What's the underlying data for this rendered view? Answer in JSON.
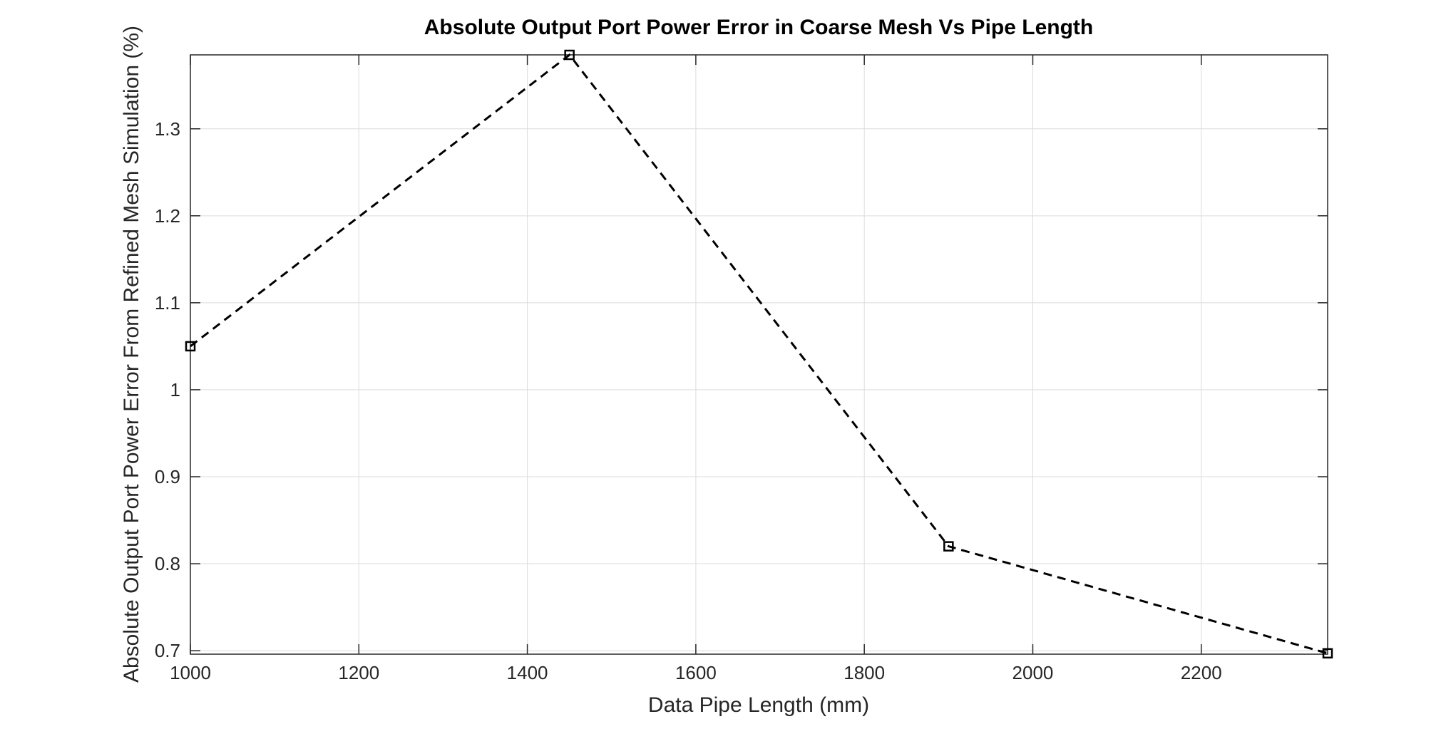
{
  "chart_data": {
    "type": "line",
    "title": "Absolute Output Port Power Error in Coarse Mesh Vs Pipe Length",
    "xlabel": "Data Pipe Length (mm)",
    "ylabel": "Absolute Output Port Power Error From Refined Mesh Simulation (%)",
    "xlim": [
      1000,
      2350
    ],
    "ylim": [
      0.696,
      1.385
    ],
    "xticks": [
      1000,
      1200,
      1400,
      1600,
      1800,
      2000,
      2200
    ],
    "yticks": [
      0.7,
      0.8,
      0.9,
      1.0,
      1.1,
      1.2,
      1.3
    ],
    "xtick_labels": [
      "1000",
      "1200",
      "1400",
      "1600",
      "1800",
      "2000",
      "2200"
    ],
    "ytick_labels": [
      "0.7",
      "0.8",
      "0.9",
      "1",
      "1.1",
      "1.2",
      "1.3"
    ],
    "grid": true,
    "series": [
      {
        "x": [
          1000,
          1450,
          1900,
          2350
        ],
        "y": [
          1.05,
          1.385,
          0.82,
          0.697
        ],
        "line_style": "dashed",
        "marker": "square",
        "color": "#000000"
      }
    ]
  }
}
